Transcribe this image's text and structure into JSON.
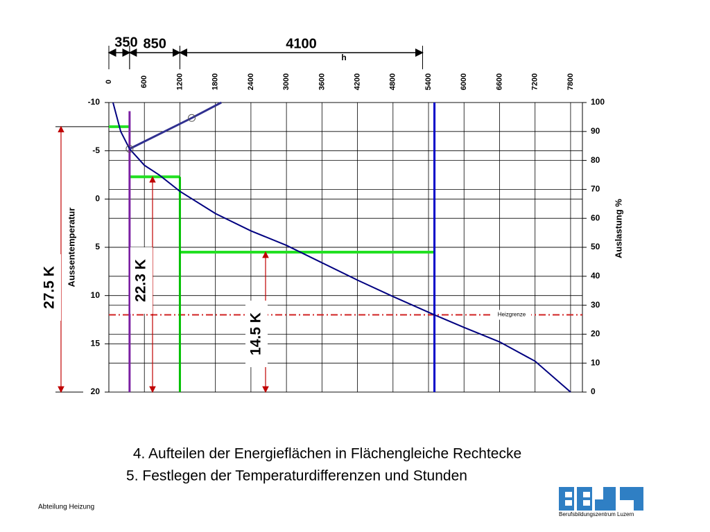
{
  "chart_data": {
    "type": "line",
    "x_label": "h",
    "y_label": "Aussentemperatur",
    "y2_label": "Auslastung %",
    "xlim": [
      0,
      8000
    ],
    "xticks": [
      0,
      600,
      1200,
      1800,
      2400,
      3000,
      3600,
      4200,
      4800,
      5400,
      6000,
      6600,
      7200,
      7800
    ],
    "ylim": [
      -10,
      20
    ],
    "y_inverted": true,
    "yticks": [
      -10,
      -5,
      0,
      5,
      10,
      15,
      20
    ],
    "y2lim": [
      0,
      100
    ],
    "y2ticks": [
      0,
      10,
      20,
      30,
      40,
      50,
      60,
      70,
      80,
      90,
      100
    ],
    "grid": true,
    "series": [
      {
        "color": "#000080",
        "x": [
          70,
          200,
          350,
          600,
          850,
          1200,
          1800,
          2400,
          3000,
          3600,
          4200,
          4800,
          5500,
          6000,
          6600,
          7200,
          7800
        ],
        "values": [
          -10,
          -7,
          -5.2,
          -3.5,
          -2.5,
          -0.8,
          1.5,
          3.3,
          4.8,
          6.6,
          8.4,
          10.1,
          12,
          13.3,
          14.8,
          16.8,
          20
        ]
      }
    ],
    "spans": [
      {
        "label": "350",
        "value": 350
      },
      {
        "label": "850",
        "value": 850
      },
      {
        "label": "4100",
        "value": 4100
      }
    ],
    "level_bars": [
      {
        "from": 0,
        "to": 350,
        "temp": -7.5
      },
      {
        "from": 350,
        "to": 1200,
        "temp": -2.3
      },
      {
        "from": 1200,
        "to": 5500,
        "temp": 5.5
      }
    ],
    "level_color": "#22e022",
    "vertical_lines": [
      {
        "x": 350,
        "from": -9.1,
        "to": 20,
        "color": "#7b1fa2"
      },
      {
        "x": 1200,
        "from": -2.3,
        "to": 20,
        "color": "#00c000"
      },
      {
        "x": 5500,
        "from": -10,
        "to": 20,
        "color": "#0000c8"
      }
    ],
    "differences": [
      {
        "label": "27.5 K",
        "from": -7.5,
        "to": 20
      },
      {
        "label": "22.3 K",
        "from": -2.3,
        "to": 20
      },
      {
        "label": "14.5 K",
        "from": 5.5,
        "to": 20
      }
    ],
    "heizgrenze": {
      "label": "Heizgrenze",
      "temp": 12,
      "color": "#d02020"
    },
    "tangent": {
      "color": "#303090",
      "x": [
        350,
        1400,
        1900
      ],
      "values": [
        -5.2,
        -8.4,
        -10
      ]
    }
  },
  "notes": [
    "4. Aufteilen der Energieflächen in Flächengleiche Rechtecke",
    "5. Festlegen der Temperaturdifferenzen und Stunden"
  ],
  "footer": "Abteilung Heizung",
  "logo_text": "Berufsbildungszentrum Luzern"
}
